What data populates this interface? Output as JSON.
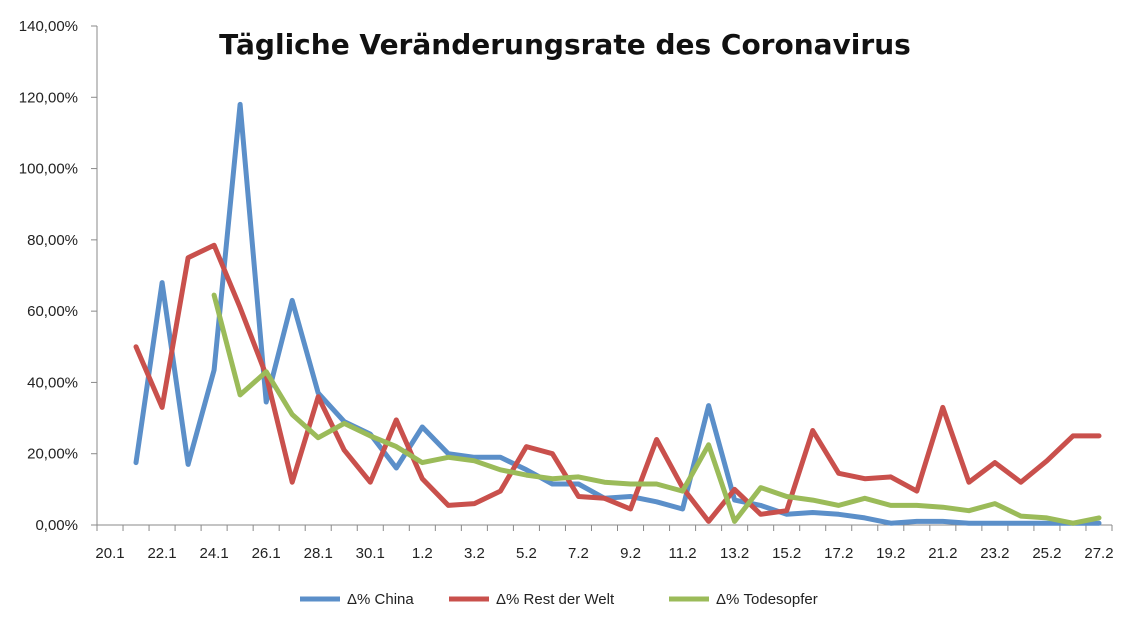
{
  "chart_data": {
    "type": "line",
    "title": "Tägliche Veränderungsrate des Coronavirus",
    "xlabel": "",
    "ylabel": "",
    "ylim": [
      0,
      140
    ],
    "y_ticks": [
      "0,00%",
      "20,00%",
      "40,00%",
      "60,00%",
      "80,00%",
      "100,00%",
      "120,00%",
      "140,00%"
    ],
    "y_tick_values": [
      0,
      20,
      40,
      60,
      80,
      100,
      120,
      140
    ],
    "x": [
      "20.1",
      "21.1",
      "22.1",
      "23.1",
      "24.1",
      "25.1",
      "26.1",
      "27.1",
      "28.1",
      "29.1",
      "30.1",
      "31.1",
      "1.2",
      "2.2",
      "3.2",
      "4.2",
      "5.2",
      "6.2",
      "7.2",
      "8.2",
      "9.2",
      "10.2",
      "11.2",
      "12.2",
      "13.2",
      "14.2",
      "15.2",
      "16.2",
      "17.2",
      "18.2",
      "19.2",
      "20.2",
      "21.2",
      "22.2",
      "23.2",
      "24.2",
      "25.2",
      "26.2",
      "27.2"
    ],
    "x_tick_labels": [
      "20.1",
      "22.1",
      "24.1",
      "26.1",
      "28.1",
      "30.1",
      "1.2",
      "3.2",
      "5.2",
      "7.2",
      "9.2",
      "11.2",
      "13.2",
      "15.2",
      "17.2",
      "19.2",
      "21.2",
      "23.2",
      "25.2",
      "27.2"
    ],
    "grid": false,
    "legend_position": "bottom",
    "series": [
      {
        "name": "Δ% China",
        "color": "#5b8fc9",
        "values": [
          null,
          17.5,
          68,
          17,
          43.5,
          118,
          34.5,
          63,
          37,
          29,
          25.5,
          16,
          27.5,
          20,
          19,
          19,
          15.5,
          11.5,
          11.5,
          7.5,
          8,
          6.5,
          4.5,
          33.5,
          7,
          5.5,
          3,
          3.5,
          3,
          2,
          0.5,
          1,
          1,
          0.5,
          0.5,
          0.5,
          0.5,
          0.5,
          0.5
        ]
      },
      {
        "name": "Δ% Rest der Welt",
        "color": "#c9504c",
        "values": [
          null,
          50,
          33,
          75,
          78.5,
          61,
          42,
          12,
          36,
          21,
          12,
          29.5,
          13,
          5.5,
          6,
          9.5,
          22,
          20,
          8,
          7.5,
          4.5,
          24,
          10.5,
          1,
          10,
          3,
          4,
          26.5,
          14.5,
          13,
          13.5,
          9.5,
          33,
          12,
          17.5,
          12,
          18,
          25,
          25
        ]
      },
      {
        "name": "Δ% Todesopfer",
        "color": "#9bbb59",
        "values": [
          null,
          null,
          null,
          null,
          64.5,
          36.5,
          43,
          31,
          24.5,
          28.5,
          25,
          22,
          17.5,
          19,
          18,
          15.5,
          14,
          13,
          13.5,
          12,
          11.5,
          11.5,
          9.5,
          22.5,
          1,
          10.5,
          8,
          7,
          5.5,
          7.5,
          5.5,
          5.5,
          5,
          4,
          6,
          2.5,
          2,
          0.5,
          2
        ]
      }
    ]
  }
}
